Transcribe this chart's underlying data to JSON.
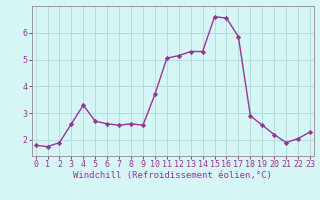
{
  "x": [
    0,
    1,
    2,
    3,
    4,
    5,
    6,
    7,
    8,
    9,
    10,
    11,
    12,
    13,
    14,
    15,
    16,
    17,
    18,
    19,
    20,
    21,
    22,
    23
  ],
  "y": [
    1.8,
    1.75,
    1.9,
    2.6,
    3.3,
    2.7,
    2.6,
    2.55,
    2.6,
    2.55,
    3.7,
    5.05,
    5.15,
    5.3,
    5.3,
    6.6,
    6.55,
    5.85,
    2.9,
    2.55,
    2.2,
    1.9,
    2.05,
    2.3
  ],
  "line_color": "#993399",
  "marker": "D",
  "marker_size": 2.2,
  "bg_color": "#d6f5f5",
  "grid_color": "#b0dede",
  "xlabel": "Windchill (Refroidissement éolien,°C)",
  "ylabel": "",
  "title": "",
  "xticks": [
    0,
    1,
    2,
    3,
    4,
    5,
    6,
    7,
    8,
    9,
    10,
    11,
    12,
    13,
    14,
    15,
    16,
    17,
    18,
    19,
    20,
    21,
    22,
    23
  ],
  "yticks": [
    2,
    3,
    4,
    5,
    6
  ],
  "xlim": [
    -0.3,
    23.3
  ],
  "ylim": [
    1.4,
    7.0
  ],
  "spine_color": "#999999",
  "tick_color": "#993399",
  "xlabel_fontsize": 6.5,
  "tick_fontsize": 6.0,
  "linewidth": 1.0
}
